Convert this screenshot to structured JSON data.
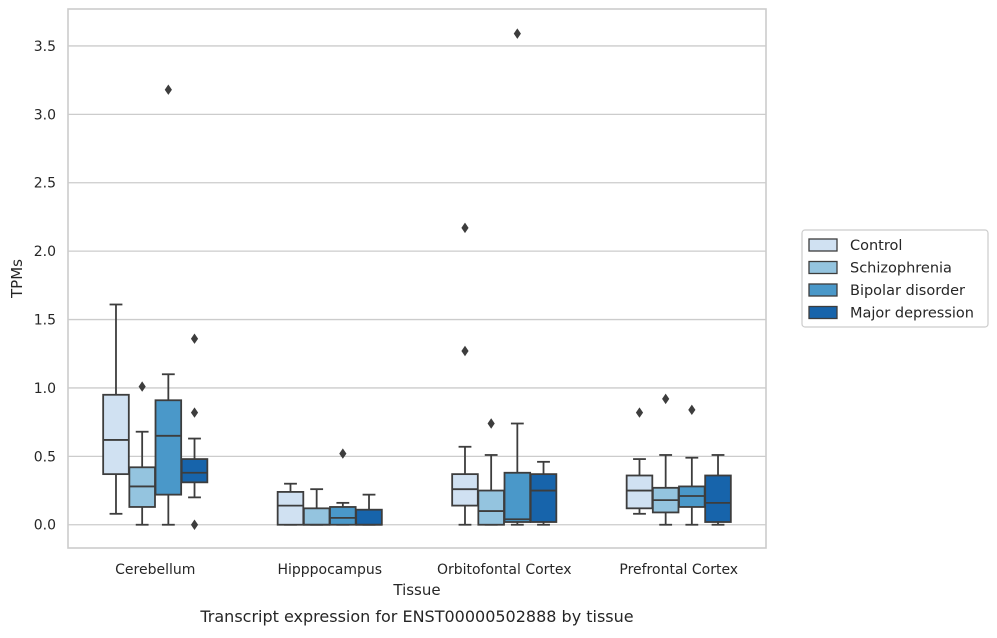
{
  "caption": "Transcript expression for ENST00000502888 by tissue",
  "chart_data": {
    "type": "box",
    "title": "",
    "xlabel": "Tissue",
    "ylabel": "TPMs",
    "ylim": [
      -0.17,
      3.77
    ],
    "yticks": [
      "0.0",
      "0.5",
      "1.0",
      "1.5",
      "2.0",
      "2.5",
      "3.0",
      "3.5"
    ],
    "ytick_values": [
      0,
      0.5,
      1.0,
      1.5,
      2.0,
      2.5,
      3.0,
      3.5
    ],
    "grid": "horizontal",
    "legend_position": "right",
    "categories": [
      "Cerebellum",
      "Hipppocampus",
      "Orbitofontal Cortex",
      "Prefrontal Cortex"
    ],
    "series": [
      {
        "name": "Control",
        "color": "#d0e1f2",
        "boxes": [
          {
            "whislo": 0.08,
            "q1": 0.37,
            "med": 0.62,
            "q3": 0.95,
            "whishi": 1.61,
            "fliers": []
          },
          {
            "whislo": 0.0,
            "q1": 0.0,
            "med": 0.14,
            "q3": 0.24,
            "whishi": 0.3,
            "fliers": []
          },
          {
            "whislo": 0.0,
            "q1": 0.14,
            "med": 0.26,
            "q3": 0.37,
            "whishi": 0.57,
            "fliers": [
              2.17,
              1.27
            ]
          },
          {
            "whislo": 0.08,
            "q1": 0.12,
            "med": 0.25,
            "q3": 0.36,
            "whishi": 0.48,
            "fliers": [
              0.82
            ]
          }
        ]
      },
      {
        "name": "Schizophrenia",
        "color": "#94c4df",
        "boxes": [
          {
            "whislo": 0.0,
            "q1": 0.13,
            "med": 0.28,
            "q3": 0.42,
            "whishi": 0.68,
            "fliers": [
              1.01
            ]
          },
          {
            "whislo": 0.0,
            "q1": 0.0,
            "med": 0.0,
            "q3": 0.12,
            "whishi": 0.26,
            "fliers": []
          },
          {
            "whislo": 0.0,
            "q1": 0.0,
            "med": 0.1,
            "q3": 0.25,
            "whishi": 0.51,
            "fliers": [
              0.74
            ]
          },
          {
            "whislo": 0.0,
            "q1": 0.09,
            "med": 0.18,
            "q3": 0.27,
            "whishi": 0.51,
            "fliers": [
              0.92
            ]
          }
        ]
      },
      {
        "name": "Bipolar disorder",
        "color": "#4a98c9",
        "boxes": [
          {
            "whislo": 0.0,
            "q1": 0.22,
            "med": 0.65,
            "q3": 0.91,
            "whishi": 1.1,
            "fliers": [
              3.18
            ]
          },
          {
            "whislo": 0.0,
            "q1": 0.0,
            "med": 0.05,
            "q3": 0.13,
            "whishi": 0.16,
            "fliers": [
              0.52
            ]
          },
          {
            "whislo": 0.0,
            "q1": 0.02,
            "med": 0.04,
            "q3": 0.38,
            "whishi": 0.74,
            "fliers": [
              3.59
            ]
          },
          {
            "whislo": 0.0,
            "q1": 0.13,
            "med": 0.21,
            "q3": 0.28,
            "whishi": 0.49,
            "fliers": [
              0.84
            ]
          }
        ]
      },
      {
        "name": "Major depression",
        "color": "#1764ab",
        "boxes": [
          {
            "whislo": 0.2,
            "q1": 0.31,
            "med": 0.38,
            "q3": 0.48,
            "whishi": 0.63,
            "fliers": [
              1.36,
              0.82,
              0.0
            ]
          },
          {
            "whislo": 0.0,
            "q1": 0.0,
            "med": 0.0,
            "q3": 0.11,
            "whishi": 0.22,
            "fliers": []
          },
          {
            "whislo": 0.0,
            "q1": 0.02,
            "med": 0.25,
            "q3": 0.37,
            "whishi": 0.46,
            "fliers": []
          },
          {
            "whislo": 0.0,
            "q1": 0.02,
            "med": 0.16,
            "q3": 0.36,
            "whishi": 0.51,
            "fliers": []
          }
        ]
      }
    ]
  }
}
